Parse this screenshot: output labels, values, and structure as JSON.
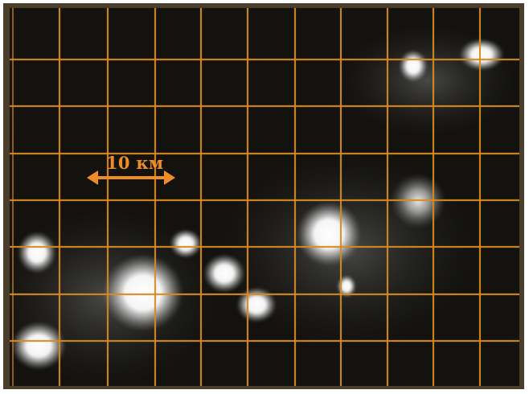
{
  "image": {
    "scale_bar_label": "10 км",
    "colors": {
      "background": "#13120f",
      "grid": "#d98a1f",
      "scale_bar": "#ef8d24",
      "blob": "#ffffff"
    }
  }
}
